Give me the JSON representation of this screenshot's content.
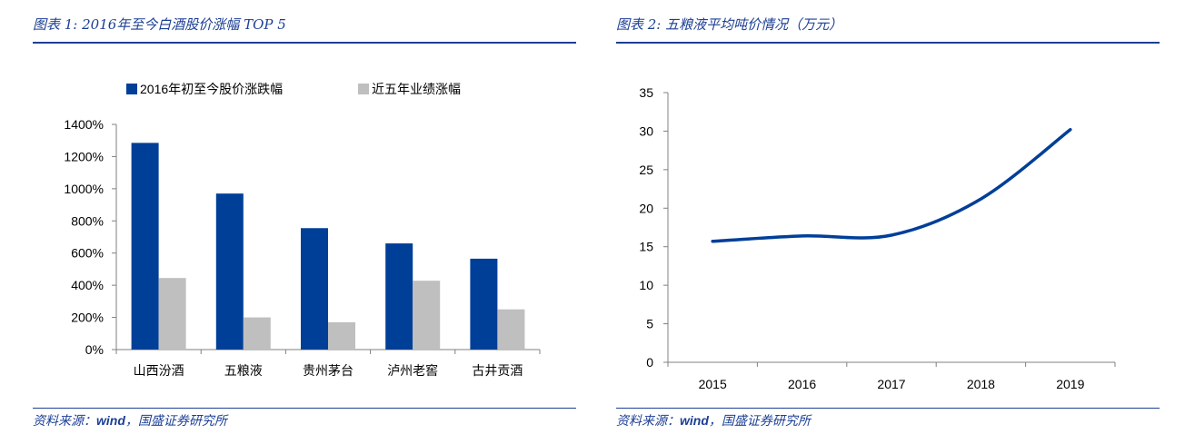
{
  "figures": [
    {
      "title": "图表 1:  2016年至今白酒股价涨幅 TOP 5",
      "source_prefix": "资料来源：",
      "source_wind": "wind",
      "source_suffix": "，国盛证券研究所"
    },
    {
      "title": "图表 2:  五粮液平均吨价情况（万元）",
      "source_prefix": "资料来源：",
      "source_wind": "wind",
      "source_suffix": "，国盛证券研究所"
    }
  ],
  "colors": {
    "blue": "#003f98",
    "gray": "#bfbfbf",
    "title": "#1c3f94"
  },
  "chart_data": [
    {
      "type": "bar",
      "categories": [
        "山西汾酒",
        "五粮液",
        "贵州茅台",
        "泸州老窖",
        "古井贡酒"
      ],
      "series": [
        {
          "name": "2016年初至今股价涨跌幅",
          "values": [
            1285,
            970,
            755,
            660,
            565
          ]
        },
        {
          "name": "近五年业绩涨幅",
          "values": [
            445,
            200,
            170,
            428,
            250
          ]
        }
      ],
      "ylim": [
        0,
        1400
      ],
      "yticks": [
        "0%",
        "200%",
        "400%",
        "600%",
        "800%",
        "1000%",
        "1200%",
        "1400%"
      ],
      "legend": "top",
      "grid": false
    },
    {
      "type": "line",
      "x": [
        "2015",
        "2016",
        "2017",
        "2018",
        "2019"
      ],
      "series": [
        {
          "values": [
            15.7,
            16.4,
            16.5,
            21.2,
            30.2
          ]
        }
      ],
      "ylim": [
        0,
        35
      ],
      "yticks": [
        "0",
        "5",
        "10",
        "15",
        "20",
        "25",
        "30",
        "35"
      ],
      "grid": false
    }
  ]
}
